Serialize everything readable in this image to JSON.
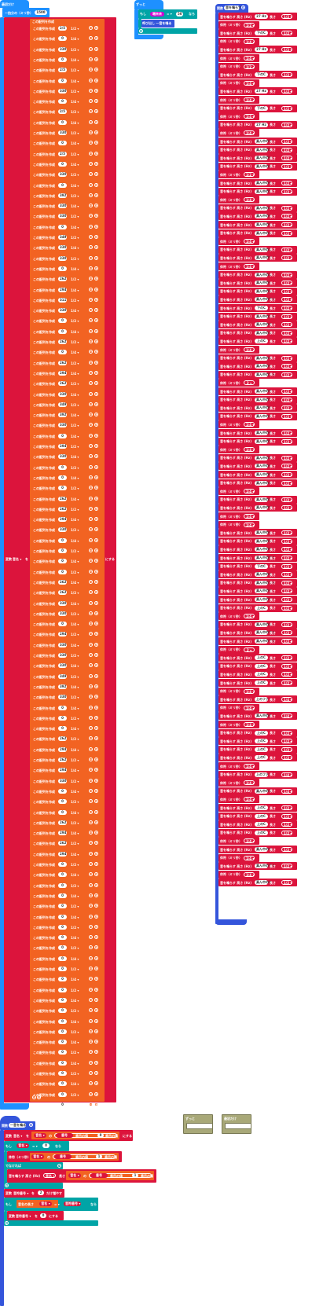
{
  "pad_hat": {
    "on_start": "最初だけ",
    "set_stroke": "一拍分の（ミリ秒）",
    "tempo": "1500"
  },
  "forever": {
    "label": "ずっと",
    "if": "もし",
    "cond_btn": "端末未",
    "eq": "= ▾",
    "cond_val": "50",
    "then": "なら",
    "call": "呼び出し 一音を鳴る"
  },
  "array": {
    "var_set": "変数",
    "var_name": "音名 ▾",
    "to": "を",
    "make_label": "にする",
    "create": "この配列を作成",
    "rows": [
      {
        "v": "2/5",
        "f": "1/2 ▾"
      },
      {
        "v": "0",
        "f": "1/4 ▾"
      },
      {
        "v": "330",
        "f": "1/2 ▾"
      },
      {
        "v": "0",
        "f": "1/4 ▾"
      },
      {
        "v": "2/5",
        "f": "1/2 ▾"
      },
      {
        "v": "0",
        "f": "1/4 ▾"
      },
      {
        "v": "330",
        "f": "1/2 ▾"
      },
      {
        "v": "0",
        "f": "1/4 ▾"
      },
      {
        "v": "2/5",
        "f": "1/2 ▾"
      },
      {
        "v": "0",
        "f": "1/4 ▾"
      },
      {
        "v": "330",
        "f": "1/2 ▾"
      },
      {
        "v": "0",
        "f": "1/4 ▾"
      },
      {
        "v": "2/5",
        "f": "1/2 ▾"
      },
      {
        "v": "0",
        "f": "1/4 ▾"
      },
      {
        "v": "330",
        "f": "1/2 ▾"
      },
      {
        "v": "0",
        "f": "1/4 ▾"
      },
      {
        "v": "392",
        "f": "1/2 ▾"
      },
      {
        "v": "330",
        "f": "1/4 ▾"
      },
      {
        "v": "330",
        "f": "1/2 ▾"
      },
      {
        "v": "0",
        "f": "1/4 ▾"
      },
      {
        "v": "349",
        "f": "1/2 ▾"
      },
      {
        "v": "330",
        "f": "1/4 ▾"
      },
      {
        "v": "330",
        "f": "1/2 ▾"
      },
      {
        "v": "0",
        "f": "1/4 ▾"
      },
      {
        "v": "262",
        "f": "1/2 ▾"
      },
      {
        "v": "294",
        "f": "1/4 ▾"
      },
      {
        "v": "311",
        "f": "1/2 ▾"
      },
      {
        "v": "330",
        "f": "1/4 ▾"
      },
      {
        "v": "0",
        "f": "1/2 ▾"
      },
      {
        "v": "0",
        "f": "1/4 ▾"
      },
      {
        "v": "262",
        "f": "1/2 ▾"
      },
      {
        "v": "0",
        "f": "1/4 ▾"
      },
      {
        "v": "262",
        "f": "1/2 ▾"
      },
      {
        "v": "294",
        "f": "1/4 ▾"
      },
      {
        "v": "262",
        "f": "1/2 ▾"
      },
      {
        "v": "330",
        "f": "1/4 ▾"
      },
      {
        "v": "349",
        "f": "1/2 ▾"
      },
      {
        "v": "392",
        "f": "1/4 ▾"
      },
      {
        "v": "330",
        "f": "1/2 ▾"
      },
      {
        "v": "0",
        "f": "1/4 ▾"
      },
      {
        "v": "294",
        "f": "1/2 ▾"
      },
      {
        "v": "330",
        "f": "1/4 ▾"
      },
      {
        "v": "0",
        "f": "1/2 ▾"
      },
      {
        "v": "0",
        "f": "1/4 ▾"
      },
      {
        "v": "0",
        "f": "1/2 ▾"
      },
      {
        "v": "262",
        "f": "1/4 ▾"
      },
      {
        "v": "262",
        "f": "1/2 ▾"
      },
      {
        "v": "294",
        "f": "1/4 ▾"
      },
      {
        "v": "330",
        "f": "1/2 ▾"
      },
      {
        "v": "0",
        "f": "1/4 ▾"
      },
      {
        "v": "0",
        "f": "1/2 ▾"
      },
      {
        "v": "0",
        "f": "1/4 ▾"
      },
      {
        "v": "0",
        "f": "1/2 ▾"
      },
      {
        "v": "262",
        "f": "1/4 ▾"
      },
      {
        "v": "262",
        "f": "1/2 ▾"
      },
      {
        "v": "330",
        "f": "1/4 ▾"
      },
      {
        "v": "330",
        "f": "1/2 ▾"
      },
      {
        "v": "0",
        "f": "1/4 ▾"
      },
      {
        "v": "294",
        "f": "1/2 ▾"
      },
      {
        "v": "330",
        "f": "1/4 ▾"
      },
      {
        "v": "330",
        "f": "1/2 ▾"
      },
      {
        "v": "330",
        "f": "1/4 ▾"
      },
      {
        "v": "349",
        "f": "1/2 ▾"
      },
      {
        "v": "392",
        "f": "1/4 ▾"
      },
      {
        "v": "330",
        "f": "1/2 ▾"
      },
      {
        "v": "0",
        "f": "1/4 ▾"
      },
      {
        "v": "0",
        "f": "1/2 ▾"
      },
      {
        "v": "0",
        "f": "1/4 ▾"
      },
      {
        "v": "262",
        "f": "1/2 ▾"
      },
      {
        "v": "294",
        "f": "1/4 ▾"
      },
      {
        "v": "262",
        "f": "1/2 ▾"
      },
      {
        "v": "294",
        "f": "1/4 ▾"
      },
      {
        "v": "330",
        "f": "1/2 ▾"
      },
      {
        "v": "0",
        "f": "1/4 ▾"
      },
      {
        "v": "0",
        "f": "1/2 ▾"
      },
      {
        "v": "0",
        "f": "1/4 ▾"
      },
      {
        "v": "262",
        "f": "1/2 ▾"
      },
      {
        "v": "294",
        "f": "1/4 ▾"
      },
      {
        "v": "262",
        "f": "1/2 ▾"
      },
      {
        "v": "294",
        "f": "1/4 ▾"
      },
      {
        "v": "0",
        "f": "1/2 ▾"
      },
      {
        "v": "0",
        "f": "1/4 ▾"
      },
      {
        "v": "0",
        "f": "1/2 ▾"
      },
      {
        "v": "0",
        "f": "1/4 ▾"
      },
      {
        "v": "0",
        "f": "1/2 ▾"
      },
      {
        "v": "0",
        "f": "1/4 ▾"
      },
      {
        "v": "0",
        "f": "1/2 ▾"
      },
      {
        "v": "0",
        "f": "1/4 ▾"
      },
      {
        "v": "0",
        "f": "1/2 ▾"
      },
      {
        "v": "0",
        "f": "1/4 ▾"
      },
      {
        "v": "0",
        "f": "1/2 ▾"
      },
      {
        "v": "0",
        "f": "1/4 ▾"
      },
      {
        "v": "0",
        "f": "1/2 ▾"
      },
      {
        "v": "0",
        "f": "1/4 ▾"
      },
      {
        "v": "0",
        "f": "1/2 ▾"
      },
      {
        "v": "0",
        "f": "1/4 ▾"
      },
      {
        "v": "0",
        "f": "1/2 ▾"
      },
      {
        "v": "0",
        "f": "1/4 ▾"
      },
      {
        "v": "0",
        "f": "1/2 ▾"
      },
      {
        "v": "0",
        "f": "1/4 ▾"
      },
      {
        "v": "0",
        "f": "1/2 ▾"
      },
      {
        "v": "0",
        "f": "1/4 ▾"
      },
      {
        "v": "0",
        "f": "1/2 ▾"
      },
      {
        "v": "0",
        "f": "2 ▾"
      }
    ]
  },
  "func": {
    "label": "関数",
    "name": "音を鳴らす",
    "rows": [
      {
        "k": "n",
        "p": "27 Hz",
        "f": "1/2 ▾"
      },
      {
        "k": "r",
        "f": "1/2 ▾"
      },
      {
        "k": "n",
        "p": "下のC",
        "f": "1/2 ▾"
      },
      {
        "k": "r",
        "f": "1/4 ▾"
      },
      {
        "k": "n",
        "p": "27 Hz",
        "f": "1/2 ▾"
      },
      {
        "k": "r",
        "f": "1/4 ▾"
      },
      {
        "k": "r",
        "f": "1/2 ▾"
      },
      {
        "k": "n",
        "p": "下のC",
        "f": "1/2 ▾"
      },
      {
        "k": "r",
        "f": "1/4 ▾"
      },
      {
        "k": "n",
        "p": "27 Hz",
        "f": "1/2 ▾"
      },
      {
        "k": "r",
        "f": "1/4 ▾"
      },
      {
        "k": "n",
        "p": "下のC",
        "f": "1/2 ▾"
      },
      {
        "k": "r",
        "f": "1/4 ▾"
      },
      {
        "k": "n",
        "p": "27 Hz",
        "f": "1/2 ▾"
      },
      {
        "k": "r",
        "f": "1/4 ▾"
      },
      {
        "k": "n",
        "p": "真ん中のミ",
        "f": "1/2 ▾"
      },
      {
        "k": "n",
        "p": "真ん中のレ",
        "f": "1/2 ▾"
      },
      {
        "k": "n",
        "p": "真ん中のシ",
        "f": "1/2 ▾"
      },
      {
        "k": "n",
        "p": "真ん中のミ",
        "f": "1/2 ▾"
      },
      {
        "k": "r",
        "f": "1/2 ▾"
      },
      {
        "k": "n",
        "p": "真ん中のミ",
        "f": "1/2 ▾"
      },
      {
        "k": "n",
        "p": "真ん中のソ",
        "f": "1/2 ▾"
      },
      {
        "k": "r",
        "f": "1/4 ▾"
      },
      {
        "k": "n",
        "p": "真ん中のミ",
        "f": "1/2 ▾"
      },
      {
        "k": "n",
        "p": "真ん中のレ",
        "f": "1/2 ▾"
      },
      {
        "k": "n",
        "p": "真ん中のシ",
        "f": "1/2 ▾"
      },
      {
        "k": "n",
        "p": "真ん中のミ",
        "f": "1/2 ▾"
      },
      {
        "k": "r",
        "f": "1/4 ▾"
      },
      {
        "k": "n",
        "p": "真ん中のミ",
        "f": "1/2 ▾"
      },
      {
        "k": "n",
        "p": "真ん中のソ",
        "f": "1/2 ▾"
      },
      {
        "k": "r",
        "f": "1/4 ▾"
      },
      {
        "k": "n",
        "p": "真ん中のミ",
        "f": "1/2 ▾"
      },
      {
        "k": "n",
        "p": "真ん中のレ",
        "f": "1/2 ▾"
      },
      {
        "k": "n",
        "p": "真ん中のミ",
        "f": "1/2 ▾"
      },
      {
        "k": "n",
        "p": "真ん中のファ",
        "f": "1/2 ▾"
      },
      {
        "k": "n",
        "p": "下のC",
        "f": "1/2 ▾"
      },
      {
        "k": "n",
        "p": "真ん中のファ",
        "f": "1/2 ▾"
      },
      {
        "k": "n",
        "p": "真ん中のミ",
        "f": "1/2 ▾"
      },
      {
        "k": "n",
        "p": "真ん中のミ",
        "f": "1/2 ▾"
      },
      {
        "k": "n",
        "p": "上のC",
        "f": "1/2 ▾"
      },
      {
        "k": "r",
        "f": "1/4 ▾"
      },
      {
        "k": "n",
        "p": "真ん中のミ",
        "f": "1/2 ▾"
      },
      {
        "k": "n",
        "p": "真ん中のレ",
        "f": "1/2 ▾"
      },
      {
        "k": "n",
        "p": "真ん中のファ",
        "f": "1/2 ▾"
      },
      {
        "k": "r",
        "f": "2 ▾"
      },
      {
        "k": "n",
        "p": "真ん中のミ",
        "f": "1/2 ▾"
      },
      {
        "k": "n",
        "p": "真ん中のソ",
        "f": "1/2 ▾"
      },
      {
        "k": "n",
        "p": "真ん中のシ",
        "f": "1/2 ▾"
      },
      {
        "k": "n",
        "p": "真ん中のミ",
        "f": "1/2 ▾"
      },
      {
        "k": "r",
        "f": "1/4 ▾"
      },
      {
        "k": "n",
        "p": "真ん中のミ",
        "f": "1/2 ▾"
      },
      {
        "k": "n",
        "p": "真ん中のソ",
        "f": "1/2 ▾"
      },
      {
        "k": "r",
        "f": "1/4 ▾"
      },
      {
        "k": "n",
        "p": "真ん中のミ",
        "f": "1/2 ▾"
      },
      {
        "k": "n",
        "p": "真ん中のレ",
        "f": "1/2 ▾"
      },
      {
        "k": "n",
        "p": "真ん中のシ",
        "f": "1/2 ▾"
      },
      {
        "k": "n",
        "p": "真ん中のミ",
        "f": "1/2 ▾"
      },
      {
        "k": "r",
        "f": "1/4 ▾"
      },
      {
        "k": "n",
        "p": "真ん中のミ",
        "f": "1/2 ▾"
      },
      {
        "k": "n",
        "p": "真ん中のソ",
        "f": "1/2 ▾"
      },
      {
        "k": "r",
        "f": "1/4 ▾"
      },
      {
        "k": "r",
        "f": "1/4 ▾"
      },
      {
        "k": "n",
        "p": "真ん中のレ",
        "f": "1/2 ▾"
      },
      {
        "k": "n",
        "p": "真ん中のシ",
        "f": "1/2 ▾"
      },
      {
        "k": "n",
        "p": "真ん中のミ",
        "f": "1/2 ▾"
      },
      {
        "k": "n",
        "p": "真ん中のファ",
        "f": "1/2 ▾"
      },
      {
        "k": "n",
        "p": "下のC",
        "f": "1/2 ▾"
      },
      {
        "k": "n",
        "p": "真ん中のミ",
        "f": "1/2 ▾"
      },
      {
        "k": "n",
        "p": "真ん中のファ",
        "f": "1/2 ▾"
      },
      {
        "k": "n",
        "p": "真ん中のミ",
        "f": "1/2 ▾"
      },
      {
        "k": "n",
        "p": "真ん中のソ",
        "f": "1/2 ▾"
      },
      {
        "k": "n",
        "p": "上のC",
        "f": "1/2 ▾"
      },
      {
        "k": "r",
        "f": "1/4 ▾"
      },
      {
        "k": "n",
        "p": "真ん中のミ",
        "f": "1/2 ▾"
      },
      {
        "k": "n",
        "p": "真ん中のファ",
        "f": "1/2 ▾"
      },
      {
        "k": "n",
        "p": "真ん中のファ",
        "f": "1/2 ▾"
      },
      {
        "k": "r",
        "f": "2 ▾"
      },
      {
        "k": "n",
        "p": "上のC",
        "f": "1/2 ▾"
      },
      {
        "k": "n",
        "p": "上のC",
        "f": "1/2 ▾"
      },
      {
        "k": "n",
        "p": "上のC",
        "f": "1/2 ▾"
      },
      {
        "k": "n",
        "p": "上のC",
        "f": "1/2 ▾"
      },
      {
        "k": "r",
        "f": "1/4 ▾"
      },
      {
        "k": "n",
        "p": "上のファ",
        "f": "1/4 ▾"
      },
      {
        "k": "r",
        "f": "1/4 ▾"
      },
      {
        "k": "n",
        "p": "真ん中のミ",
        "f": "1/4 ▾"
      },
      {
        "k": "r",
        "f": "1/4 ▾"
      },
      {
        "k": "n",
        "p": "上のC",
        "f": "1/2 ▾"
      },
      {
        "k": "n",
        "p": "上のC",
        "f": "1/2 ▾"
      },
      {
        "k": "n",
        "p": "上のC",
        "f": "1/2 ▾"
      },
      {
        "k": "n",
        "p": "上のC",
        "f": "1/2 ▾"
      },
      {
        "k": "r",
        "f": "1/4 ▾"
      },
      {
        "k": "n",
        "p": "上のファ",
        "f": "1/4 ▾"
      },
      {
        "k": "r",
        "f": "1/4 ▾"
      },
      {
        "k": "n",
        "p": "真ん中のミ",
        "f": "1/4 ▾"
      },
      {
        "k": "r",
        "f": "1/4 ▾"
      },
      {
        "k": "n",
        "p": "上のC",
        "f": "1/2 ▾"
      },
      {
        "k": "n",
        "p": "上のC",
        "f": "1/2 ▾"
      },
      {
        "k": "n",
        "p": "上のC",
        "f": "1/2 ▾"
      },
      {
        "k": "n",
        "p": "上のC",
        "f": "1/2 ▾"
      },
      {
        "k": "r",
        "f": "1/4 ▾"
      },
      {
        "k": "n",
        "p": "真ん中のソ",
        "f": "1/2 ▾"
      },
      {
        "k": "r",
        "f": "1/4 ▾"
      },
      {
        "k": "n",
        "p": "真ん中のファ",
        "f": "1/2 ▾"
      },
      {
        "k": "r",
        "f": "1/4 ▾"
      },
      {
        "k": "n",
        "p": "真ん中のミ",
        "f": "1/2 ▾"
      }
    ],
    "note_l": "音を鳴らす 高さ (Hz)",
    "note_m": "長さ",
    "rest_l": "休符（ミリ秒）"
  },
  "bottom": {
    "fn_label": "関数",
    "fn_name": "一音を鳴る",
    "set1": {
      "a": "変数",
      "b": "音名 ▾",
      "c": "を",
      "d": "音名 ▾",
      "e": "の",
      "f": "番目の値",
      "g": "番号",
      "h": "0",
      "i": "番目の値",
      "j": "にする"
    },
    "if1": {
      "a": "もし",
      "b": "音名 ▾",
      "c": "= ▾",
      "d": "0",
      "e": "なら"
    },
    "rest": {
      "a": "休符（ミリ秒）",
      "b": "音名 ▾",
      "c": "の",
      "d": "番目の値",
      "e": "番号",
      "f": "1",
      "g": "番目の値"
    },
    "else": "でなければ",
    "play": {
      "a": "音を鳴らす 高さ (Hz)",
      "b": "音名 ▾",
      "c": "長さ",
      "d": "音名 ▾",
      "e": "の",
      "f": "番目の値",
      "g": "番号",
      "h": "1",
      "i": "番目の値"
    },
    "inc": {
      "a": "変数",
      "b": "音符番号 ▾",
      "c": "を",
      "d": "2",
      "e": "だけ増やす"
    },
    "if2": {
      "a": "もし",
      "b": "音名の長さ",
      "c": "音名 ▾",
      "d": "= ▾",
      "e": "音符番号 ▾",
      "f": "なら"
    },
    "set2": {
      "a": "変数",
      "b": "音符番号 ▾",
      "c": "を",
      "d": "0",
      "e": "にする"
    }
  },
  "olive": {
    "a": "ずっと",
    "b": "最初だけ"
  }
}
